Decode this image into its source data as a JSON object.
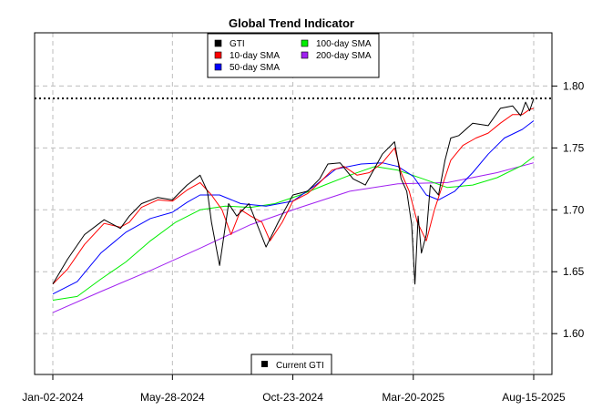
{
  "chart_data": {
    "type": "line",
    "title": "Global Trend Indicator",
    "xlabel": "",
    "ylabel": "",
    "ylim": [
      1.567,
      1.843
    ],
    "x_domain": [
      "2024-01-02",
      "2025-08-15"
    ],
    "x_ticks": [
      "Jan-02-2024",
      "May-28-2024",
      "Oct-23-2024",
      "Mar-20-2025",
      "Aug-15-2025"
    ],
    "y_ticks": [
      1.6,
      1.65,
      1.7,
      1.75,
      1.8
    ],
    "grid": true,
    "reference_line": {
      "name": "Current GTI",
      "value": 1.79
    },
    "legend_position": "top-center",
    "bottom_legend": "Current GTI",
    "series": [
      {
        "name": "GTI",
        "color": "#000000",
        "x": [
          "2024-01-02",
          "2024-01-20",
          "2024-02-10",
          "2024-03-05",
          "2024-03-25",
          "2024-04-05",
          "2024-04-20",
          "2024-05-10",
          "2024-05-28",
          "2024-06-15",
          "2024-07-01",
          "2024-07-10",
          "2024-07-15",
          "2024-07-25",
          "2024-08-05",
          "2024-08-15",
          "2024-08-30",
          "2024-09-20",
          "2024-10-05",
          "2024-10-23",
          "2024-11-10",
          "2024-11-25",
          "2024-12-05",
          "2024-12-20",
          "2025-01-05",
          "2025-01-20",
          "2025-02-10",
          "2025-02-25",
          "2025-03-05",
          "2025-03-12",
          "2025-03-18",
          "2025-03-22",
          "2025-03-26",
          "2025-03-30",
          "2025-04-05",
          "2025-04-10",
          "2025-04-20",
          "2025-04-28",
          "2025-05-05",
          "2025-05-15",
          "2025-06-01",
          "2025-06-20",
          "2025-07-05",
          "2025-07-20",
          "2025-07-30",
          "2025-08-05",
          "2025-08-10",
          "2025-08-15"
        ],
        "values": [
          1.64,
          1.66,
          1.68,
          1.692,
          1.685,
          1.695,
          1.705,
          1.71,
          1.708,
          1.72,
          1.728,
          1.715,
          1.69,
          1.655,
          1.705,
          1.695,
          1.705,
          1.67,
          1.69,
          1.712,
          1.715,
          1.725,
          1.737,
          1.738,
          1.725,
          1.72,
          1.745,
          1.755,
          1.725,
          1.715,
          1.688,
          1.64,
          1.695,
          1.665,
          1.68,
          1.72,
          1.712,
          1.74,
          1.758,
          1.76,
          1.77,
          1.768,
          1.782,
          1.784,
          1.776,
          1.787,
          1.78,
          1.79
        ]
      },
      {
        "name": "10-day SMA",
        "color": "#ff0000",
        "x": [
          "2024-01-02",
          "2024-01-20",
          "2024-02-10",
          "2024-03-05",
          "2024-03-25",
          "2024-04-05",
          "2024-04-20",
          "2024-05-10",
          "2024-05-28",
          "2024-06-15",
          "2024-07-01",
          "2024-07-15",
          "2024-07-28",
          "2024-08-08",
          "2024-08-20",
          "2024-09-01",
          "2024-09-15",
          "2024-09-25",
          "2024-10-10",
          "2024-10-23",
          "2024-11-10",
          "2024-11-25",
          "2024-12-10",
          "2024-12-25",
          "2025-01-10",
          "2025-01-25",
          "2025-02-10",
          "2025-02-25",
          "2025-03-05",
          "2025-03-15",
          "2025-03-25",
          "2025-04-05",
          "2025-04-15",
          "2025-04-25",
          "2025-05-05",
          "2025-05-20",
          "2025-06-05",
          "2025-06-20",
          "2025-07-05",
          "2025-07-20",
          "2025-08-01",
          "2025-08-10",
          "2025-08-15"
        ],
        "values": [
          1.64,
          1.652,
          1.672,
          1.689,
          1.686,
          1.69,
          1.702,
          1.708,
          1.707,
          1.716,
          1.722,
          1.712,
          1.7,
          1.68,
          1.7,
          1.695,
          1.69,
          1.675,
          1.69,
          1.707,
          1.713,
          1.722,
          1.732,
          1.735,
          1.728,
          1.73,
          1.738,
          1.75,
          1.73,
          1.715,
          1.69,
          1.675,
          1.7,
          1.72,
          1.74,
          1.752,
          1.758,
          1.762,
          1.77,
          1.777,
          1.777,
          1.781,
          1.782
        ]
      },
      {
        "name": "50-day SMA",
        "color": "#0000ff",
        "x": [
          "2024-01-02",
          "2024-02-01",
          "2024-03-01",
          "2024-04-01",
          "2024-05-01",
          "2024-05-28",
          "2024-06-15",
          "2024-07-01",
          "2024-07-25",
          "2024-08-20",
          "2024-09-20",
          "2024-10-23",
          "2024-11-20",
          "2024-12-15",
          "2025-01-15",
          "2025-02-10",
          "2025-03-01",
          "2025-03-20",
          "2025-04-05",
          "2025-04-20",
          "2025-05-10",
          "2025-06-01",
          "2025-06-20",
          "2025-07-10",
          "2025-08-01",
          "2025-08-15"
        ],
        "values": [
          1.632,
          1.642,
          1.665,
          1.682,
          1.693,
          1.698,
          1.706,
          1.712,
          1.712,
          1.705,
          1.703,
          1.707,
          1.72,
          1.733,
          1.737,
          1.738,
          1.735,
          1.727,
          1.712,
          1.708,
          1.715,
          1.73,
          1.745,
          1.758,
          1.765,
          1.772
        ]
      },
      {
        "name": "100-day SMA",
        "color": "#00ee00",
        "x": [
          "2024-01-02",
          "2024-02-01",
          "2024-03-01",
          "2024-04-01",
          "2024-05-01",
          "2024-06-01",
          "2024-07-01",
          "2024-08-01",
          "2024-09-01",
          "2024-10-01",
          "2024-11-01",
          "2024-12-01",
          "2025-01-01",
          "2025-02-01",
          "2025-03-01",
          "2025-04-01",
          "2025-05-01",
          "2025-06-01",
          "2025-07-01",
          "2025-08-01",
          "2025-08-15"
        ],
        "values": [
          1.627,
          1.63,
          1.644,
          1.658,
          1.675,
          1.69,
          1.7,
          1.703,
          1.702,
          1.705,
          1.712,
          1.72,
          1.728,
          1.735,
          1.732,
          1.725,
          1.718,
          1.72,
          1.726,
          1.736,
          1.743
        ]
      },
      {
        "name": "200-day SMA",
        "color": "#a020f0",
        "x": [
          "2024-01-02",
          "2024-03-01",
          "2024-05-01",
          "2024-07-01",
          "2024-09-01",
          "2024-11-01",
          "2025-01-01",
          "2025-03-01",
          "2025-05-01",
          "2025-07-01",
          "2025-08-15"
        ],
        "values": [
          1.617,
          1.634,
          1.651,
          1.669,
          1.688,
          1.702,
          1.715,
          1.721,
          1.722,
          1.73,
          1.738
        ]
      }
    ]
  }
}
